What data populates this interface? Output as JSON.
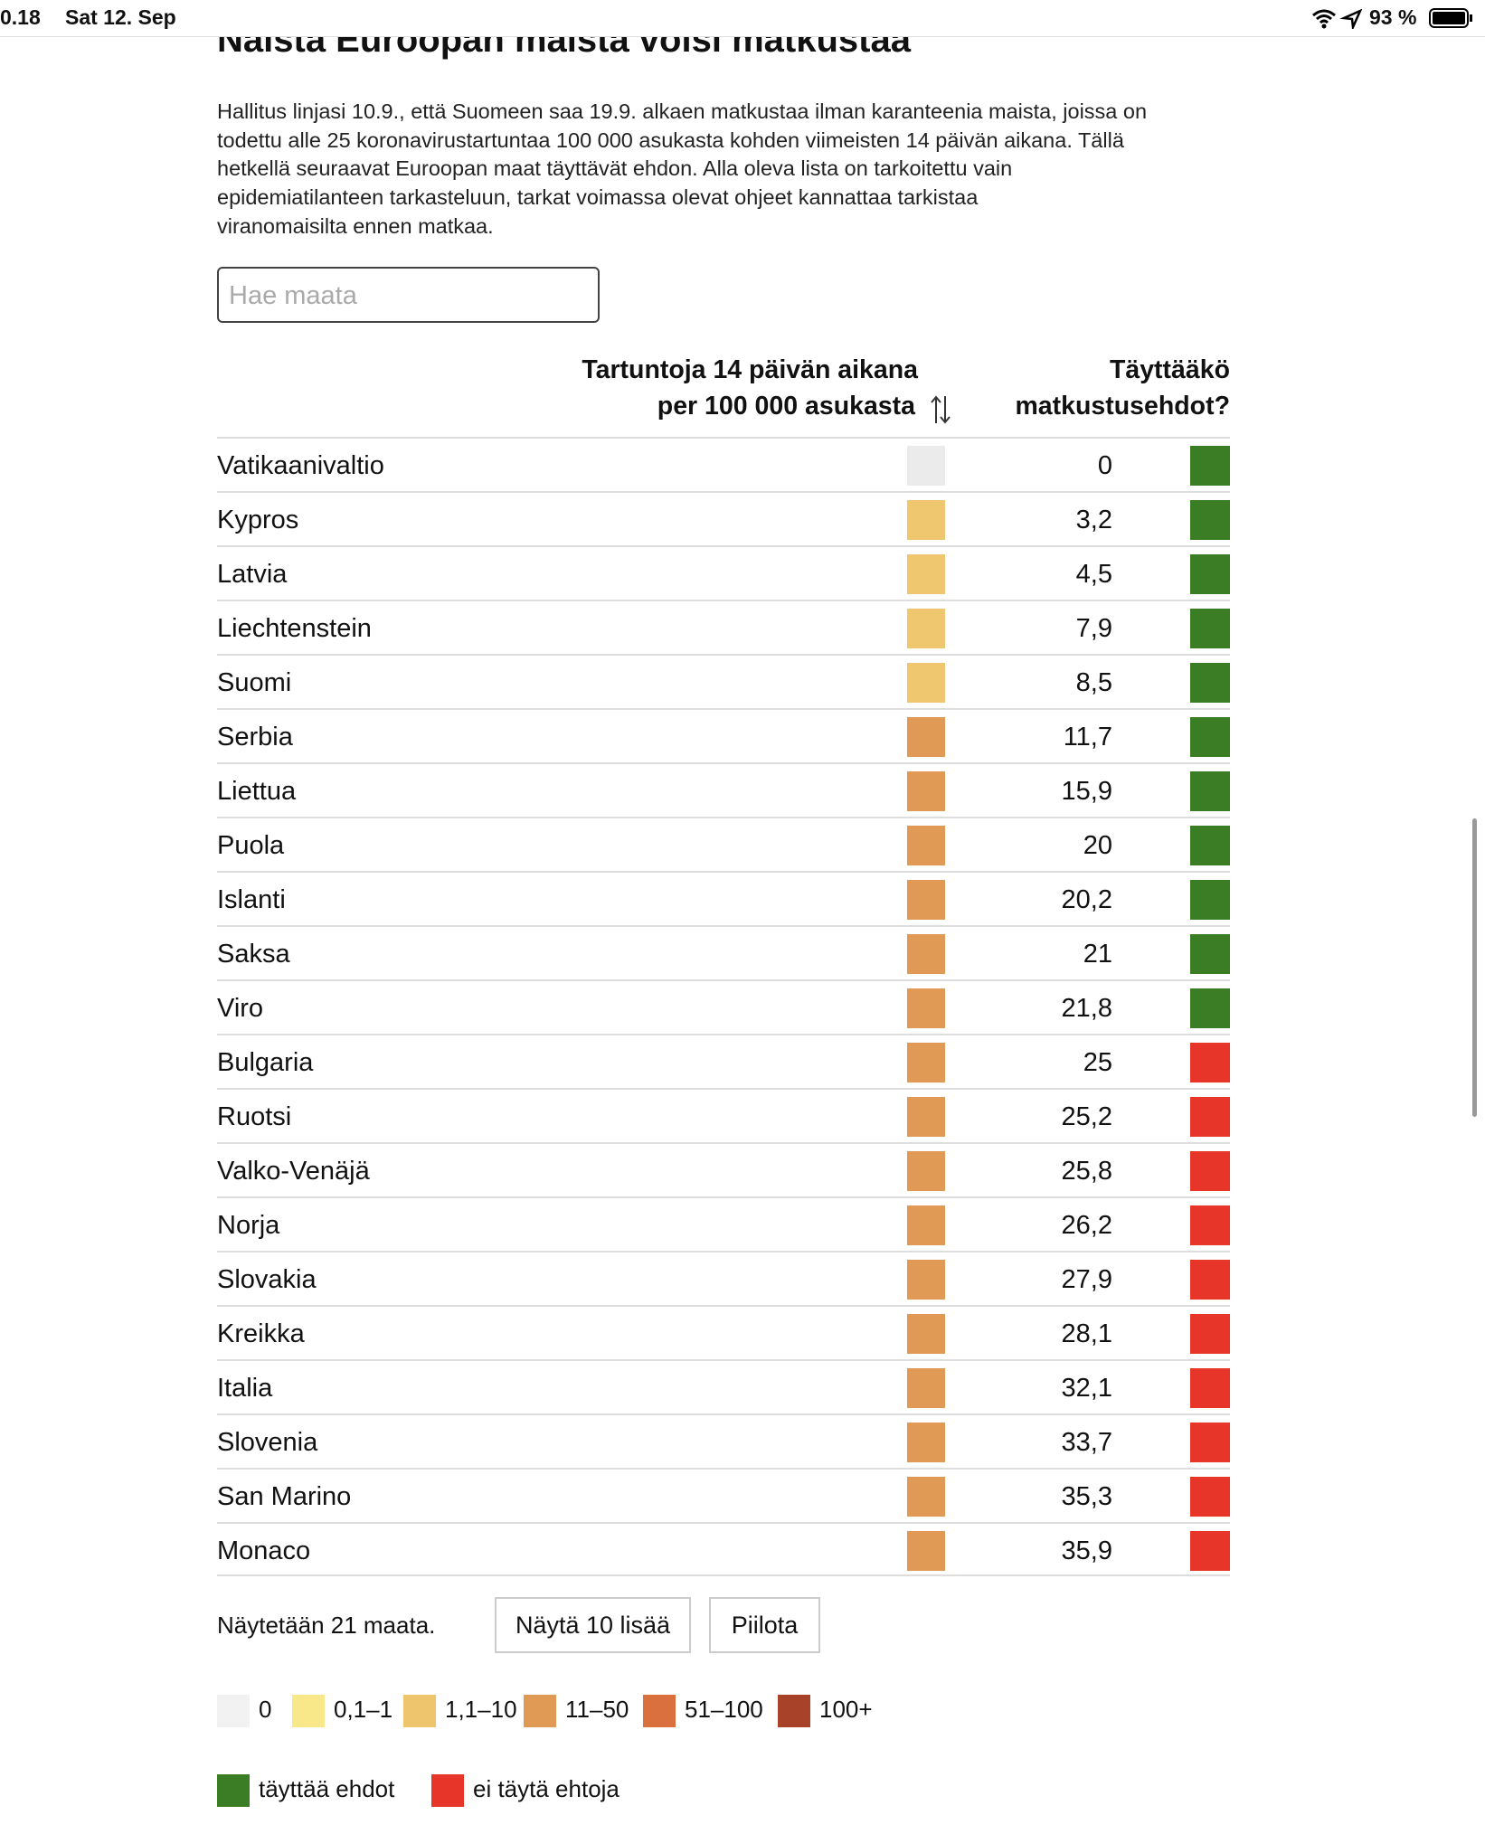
{
  "status_bar": {
    "time": "0.18",
    "date": "Sat 12. Sep",
    "battery": "93 %"
  },
  "article": {
    "title": "Naista Euroopan maista voisi matkustaa",
    "intro": [
      "Hallitus linjasi 10.9., että Suomeen saa 19.9. alkaen matkustaa ilman karanteenia maista, joissa on",
      "todettu alle 25 koronavirustartuntaa 100 000 asukasta kohden viimeisten 14 päivän aikana. Tällä",
      "hetkellä seuraavat Euroopan maat täyttävät ehdon. Alla oleva lista on tarkoitettu vain",
      "epidemiatilanteen tarkasteluun, tarkat voimassa olevat ohjeet kannattaa tarkistaa",
      "viranomaisilta ennen matkaa."
    ],
    "search_placeholder": "Hae maata"
  },
  "table": {
    "columns": [
      [
        "Tartuntoja 14 päivän aikana",
        "per 100 000 asukasta"
      ],
      [
        "Täyttääkö",
        "matkustusehdot?"
      ]
    ],
    "rows": [
      {
        "country": "Vatikaanivaltio",
        "value": "0",
        "color": "#ebebeb",
        "status_color": "#3a7d24"
      },
      {
        "country": "Kypros",
        "value": "3,2",
        "color": "#efc76e",
        "status_color": "#3a7d24"
      },
      {
        "country": "Latvia",
        "value": "4,5",
        "color": "#efc76e",
        "status_color": "#3a7d24"
      },
      {
        "country": "Liechtenstein",
        "value": "7,9",
        "color": "#efc76e",
        "status_color": "#3a7d24"
      },
      {
        "country": "Suomi",
        "value": "8,5",
        "color": "#efc76e",
        "status_color": "#3a7d24"
      },
      {
        "country": "Serbia",
        "value": "11,7",
        "color": "#e09a55",
        "status_color": "#3a7d24"
      },
      {
        "country": "Liettua",
        "value": "15,9",
        "color": "#e09a55",
        "status_color": "#3a7d24"
      },
      {
        "country": "Puola",
        "value": "20",
        "color": "#e09a55",
        "status_color": "#3a7d24"
      },
      {
        "country": "Islanti",
        "value": "20,2",
        "color": "#e09a55",
        "status_color": "#3a7d24"
      },
      {
        "country": "Saksa",
        "value": "21",
        "color": "#e09a55",
        "status_color": "#3a7d24"
      },
      {
        "country": "Viro",
        "value": "21,8",
        "color": "#e09a55",
        "status_color": "#3a7d24"
      },
      {
        "country": "Bulgaria",
        "value": "25",
        "color": "#e09a55",
        "status_color": "#e8352a"
      },
      {
        "country": "Ruotsi",
        "value": "25,2",
        "color": "#e09a55",
        "status_color": "#e8352a"
      },
      {
        "country": "Valko-Venäjä",
        "value": "25,8",
        "color": "#e09a55",
        "status_color": "#e8352a"
      },
      {
        "country": "Norja",
        "value": "26,2",
        "color": "#e09a55",
        "status_color": "#e8352a"
      },
      {
        "country": "Slovakia",
        "value": "27,9",
        "color": "#e09a55",
        "status_color": "#e8352a"
      },
      {
        "country": "Kreikka",
        "value": "28,1",
        "color": "#e09a55",
        "status_color": "#e8352a"
      },
      {
        "country": "Italia",
        "value": "32,1",
        "color": "#e09a55",
        "status_color": "#e8352a"
      },
      {
        "country": "Slovenia",
        "value": "33,7",
        "color": "#e09a55",
        "status_color": "#e8352a"
      },
      {
        "country": "San Marino",
        "value": "35,3",
        "color": "#e09a55",
        "status_color": "#e8352a"
      },
      {
        "country": "Monaco",
        "value": "35,9",
        "color": "#e09a55",
        "status_color": "#e8352a"
      }
    ]
  },
  "footer": {
    "count_text": "Näytetään 21 maata.",
    "buttons": [
      "Näytä 10 lisää",
      "Piilota"
    ]
  },
  "legend": {
    "scale": [
      {
        "label": "0",
        "color": "#f2f2f2"
      },
      {
        "label": "0,1–1",
        "color": "#f9e88a"
      },
      {
        "label": "1,1–10",
        "color": "#eec46c"
      },
      {
        "label": "11–50",
        "color": "#e09a55"
      },
      {
        "label": "51–100",
        "color": "#d9703e"
      },
      {
        "label": "100+",
        "color": "#a8432a"
      }
    ],
    "status": [
      {
        "label": "täyttää ehdot",
        "color": "#3a7d24"
      },
      {
        "label": "ei täytä ehtoja",
        "color": "#e8352a"
      }
    ]
  }
}
